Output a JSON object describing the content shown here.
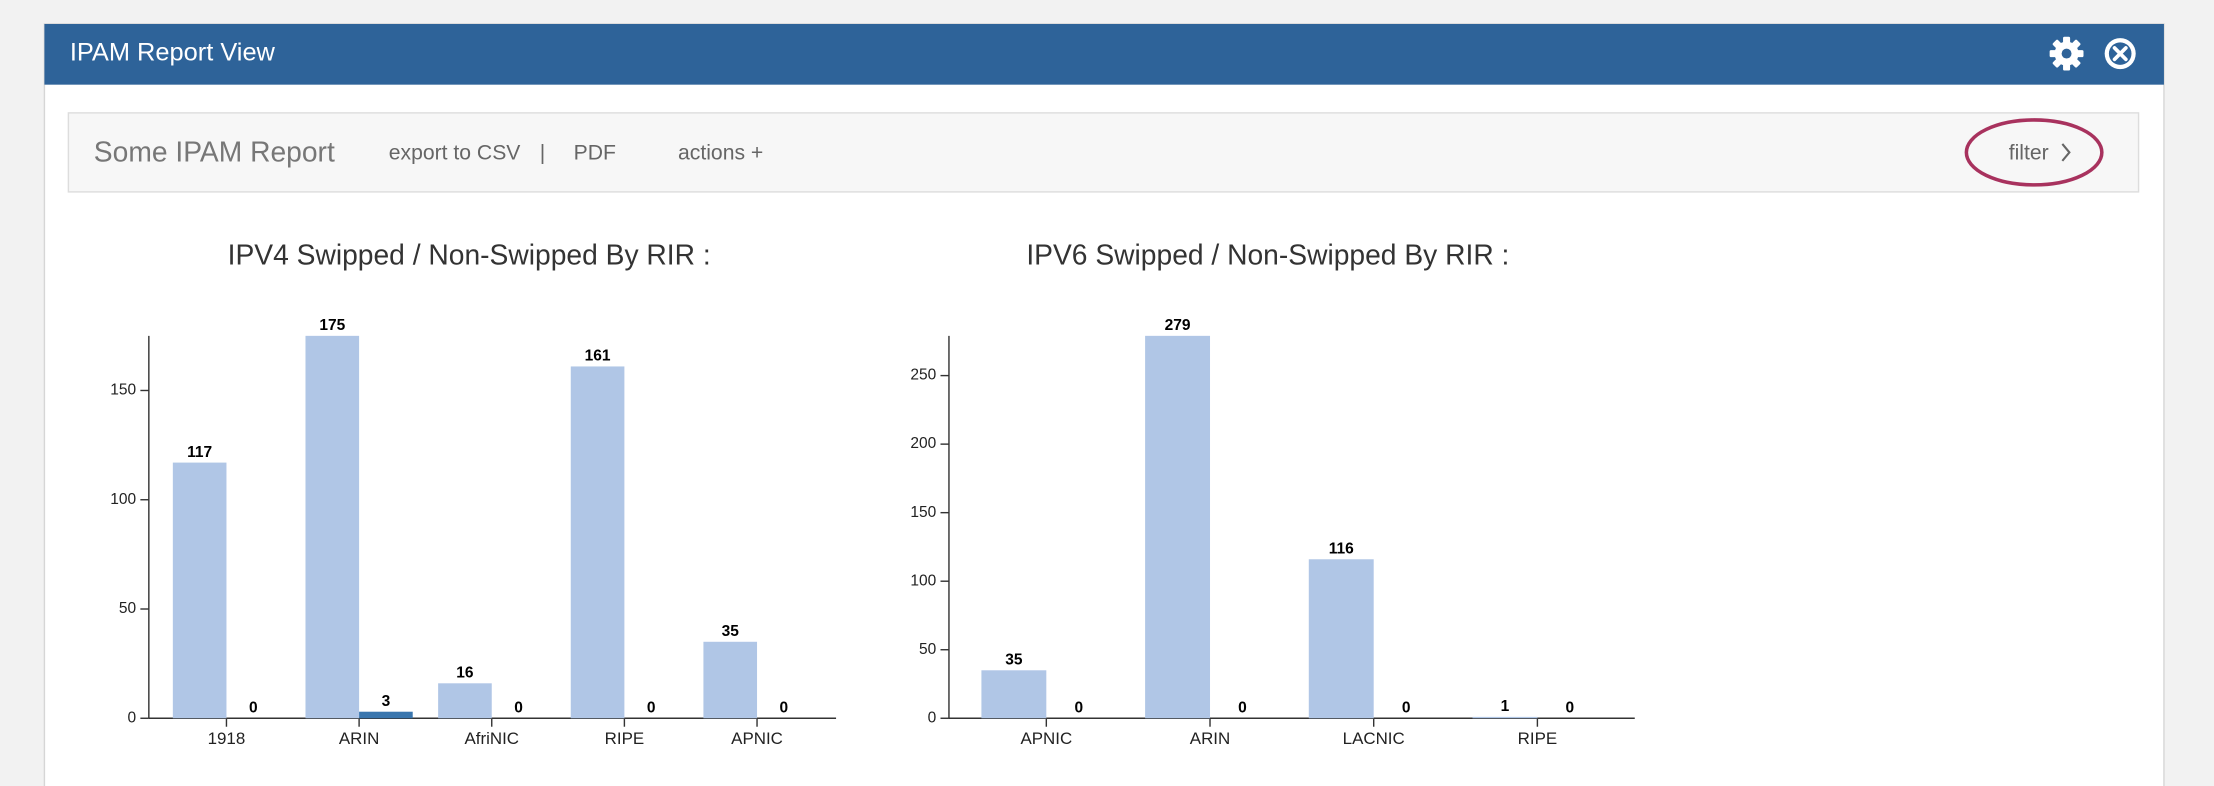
{
  "panel": {
    "title": "IPAM Report View"
  },
  "toolbar": {
    "title": "Some IPAM Report",
    "links": [
      "export to CSV",
      "|",
      "PDF",
      "actions +"
    ],
    "filter": "filter"
  },
  "chart_data": [
    {
      "type": "bar",
      "title": "IPV4 Swipped / Non-Swipped By RIR :",
      "categories": [
        "1918",
        "ARIN",
        "AfriNIC",
        "RIPE",
        "APNIC"
      ],
      "series": [
        {
          "color": "#b0c6e6",
          "values": [
            117,
            175,
            16,
            161,
            35
          ]
        },
        {
          "color": "#3a76ae",
          "values": [
            0,
            3,
            0,
            0,
            0
          ]
        }
      ],
      "ylim": [
        0,
        175
      ],
      "yticks": [
        0,
        50,
        100,
        150
      ]
    },
    {
      "type": "bar",
      "title": "IPV6 Swipped / Non-Swipped By RIR :",
      "categories": [
        "APNIC",
        "ARIN",
        "LACNIC",
        "RIPE"
      ],
      "series": [
        {
          "color": "#b0c6e6",
          "values": [
            35,
            279,
            116,
            1
          ]
        },
        {
          "color": "#3a76ae",
          "values": [
            0,
            0,
            0,
            0
          ]
        }
      ],
      "ylim": [
        0,
        279
      ],
      "yticks": [
        0,
        50,
        100,
        150,
        200,
        250
      ]
    }
  ]
}
